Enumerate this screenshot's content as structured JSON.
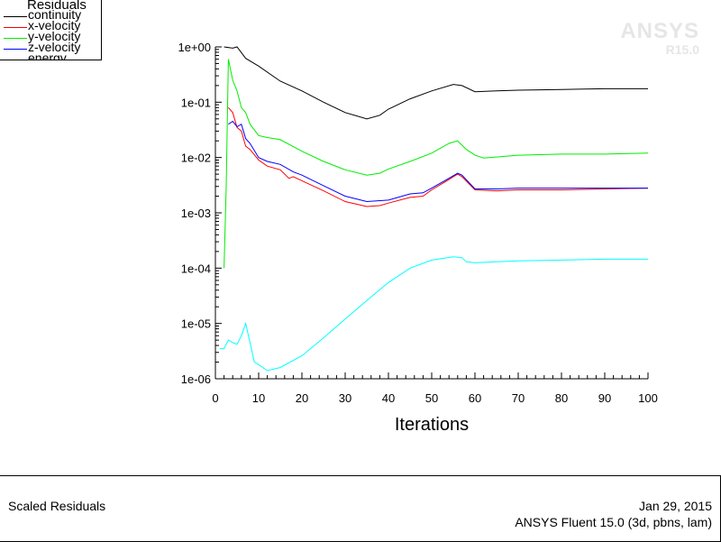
{
  "legend": {
    "title": "Residuals",
    "items": [
      {
        "label": "continuity",
        "color": "#000000"
      },
      {
        "label": "x-velocity",
        "color": "#ff0000"
      },
      {
        "label": "y-velocity",
        "color": "#00ee00"
      },
      {
        "label": "z-velocity",
        "color": "#0000ff"
      },
      {
        "label": "energy",
        "color": "#00ffff"
      }
    ]
  },
  "watermark": {
    "brand": "ANSYS",
    "version": "R15.0"
  },
  "footer": {
    "title": "Scaled Residuals",
    "date": "Jan 29, 2015",
    "version": "ANSYS Fluent 15.0 (3d, pbns, lam)"
  },
  "chart_data": {
    "type": "line",
    "title": "",
    "xlabel": "Iterations",
    "ylabel": "",
    "xlim": [
      0,
      100
    ],
    "ylim": [
      1e-06,
      1
    ],
    "yscale": "log",
    "xticks": [
      0,
      10,
      20,
      30,
      40,
      50,
      60,
      70,
      80,
      90,
      100
    ],
    "yticks": [
      {
        "value": 1,
        "label": "1e+00"
      },
      {
        "value": 0.1,
        "label": "1e-01"
      },
      {
        "value": 0.01,
        "label": "1e-02"
      },
      {
        "value": 0.001,
        "label": "1e-03"
      },
      {
        "value": 0.0001,
        "label": "1e-04"
      },
      {
        "value": 1e-05,
        "label": "1e-05"
      },
      {
        "value": 1e-06,
        "label": "1e-06"
      }
    ],
    "grid": false,
    "legend_position": "top-left",
    "series": [
      {
        "name": "continuity",
        "color": "#000000",
        "x": [
          2,
          4,
          5,
          7,
          10,
          15,
          20,
          25,
          30,
          35,
          38,
          40,
          45,
          50,
          55,
          57,
          60,
          65,
          70,
          80,
          90,
          100
        ],
        "y": [
          1.0,
          0.95,
          1.0,
          0.62,
          0.45,
          0.24,
          0.16,
          0.1,
          0.065,
          0.05,
          0.058,
          0.075,
          0.115,
          0.16,
          0.21,
          0.2,
          0.155,
          0.16,
          0.165,
          0.17,
          0.175,
          0.175
        ]
      },
      {
        "name": "x-velocity",
        "color": "#ff0000",
        "x": [
          3,
          4,
          5,
          6,
          7,
          8,
          10,
          12,
          15,
          17,
          18,
          20,
          25,
          30,
          35,
          38,
          40,
          45,
          48,
          50,
          53,
          56,
          57,
          60,
          65,
          70,
          80,
          90,
          100
        ],
        "y": [
          0.08,
          0.065,
          0.035,
          0.03,
          0.016,
          0.014,
          0.009,
          0.007,
          0.006,
          0.0042,
          0.0045,
          0.0038,
          0.0025,
          0.0016,
          0.0013,
          0.00135,
          0.0015,
          0.0019,
          0.002,
          0.0026,
          0.0036,
          0.005,
          0.0045,
          0.0026,
          0.0025,
          0.0026,
          0.0026,
          0.0027,
          0.0028
        ]
      },
      {
        "name": "y-velocity",
        "color": "#00ee00",
        "x": [
          2,
          2.5,
          3,
          4,
          5,
          6,
          7,
          8,
          10,
          12,
          15,
          20,
          25,
          30,
          35,
          38,
          40,
          45,
          50,
          54,
          56,
          58,
          60,
          62,
          70,
          80,
          90,
          100
        ],
        "y": [
          0.0001,
          0.003,
          0.6,
          0.25,
          0.16,
          0.08,
          0.065,
          0.04,
          0.025,
          0.023,
          0.021,
          0.013,
          0.0085,
          0.006,
          0.0048,
          0.0052,
          0.0062,
          0.0085,
          0.012,
          0.018,
          0.02,
          0.014,
          0.011,
          0.0098,
          0.011,
          0.0115,
          0.0115,
          0.012
        ]
      },
      {
        "name": "z-velocity",
        "color": "#0000ff",
        "x": [
          3,
          4,
          5,
          6,
          7,
          8,
          10,
          12,
          15,
          18,
          20,
          25,
          30,
          35,
          40,
          45,
          48,
          50,
          53,
          56,
          57,
          60,
          65,
          70,
          80,
          90,
          100
        ],
        "y": [
          0.04,
          0.045,
          0.036,
          0.04,
          0.022,
          0.018,
          0.01,
          0.0085,
          0.0075,
          0.0055,
          0.0048,
          0.0031,
          0.002,
          0.0016,
          0.0017,
          0.0022,
          0.0023,
          0.0028,
          0.0038,
          0.0052,
          0.0048,
          0.0027,
          0.0027,
          0.0028,
          0.0028,
          0.0028,
          0.0028
        ]
      },
      {
        "name": "energy",
        "color": "#00ffff",
        "x": [
          1,
          2,
          3,
          4,
          5,
          6,
          7,
          8,
          9,
          10,
          12,
          15,
          20,
          25,
          30,
          35,
          40,
          45,
          50,
          55,
          57,
          58,
          60,
          65,
          70,
          80,
          90,
          100
        ],
        "y": [
          3.5e-06,
          3.5e-06,
          5e-06,
          4.5e-06,
          4.2e-06,
          6e-06,
          1e-05,
          4.5e-06,
          2e-06,
          1.8e-06,
          1.4e-06,
          1.6e-06,
          2.6e-06,
          5.5e-06,
          1.2e-05,
          2.6e-05,
          5.5e-05,
          0.0001,
          0.00014,
          0.00016,
          0.000155,
          0.00013,
          0.000125,
          0.00013,
          0.000135,
          0.00014,
          0.000145,
          0.000145
        ]
      }
    ]
  }
}
